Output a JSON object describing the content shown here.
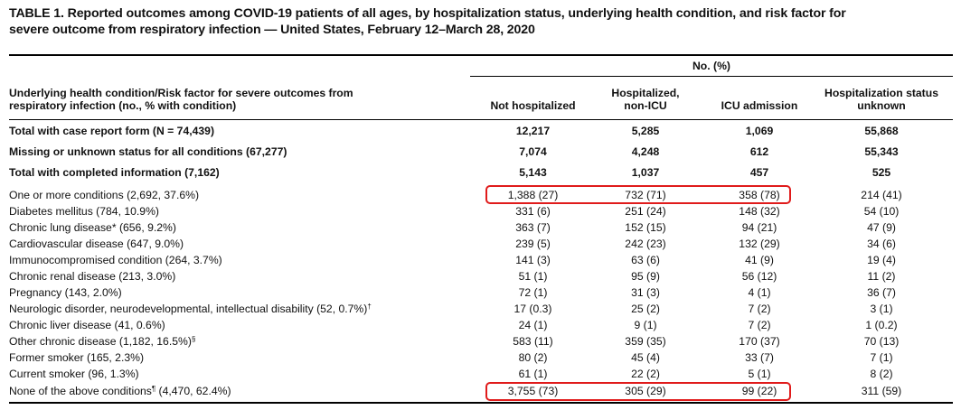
{
  "title_line1": "TABLE 1. Reported outcomes among COVID-19 patients of all ages, by hospitalization status, underlying health condition, and risk factor for",
  "title_line2": "severe outcome from respiratory infection — United States, February 12–March 28, 2020",
  "spanner": "No. (%)",
  "row_header_line1": "Underlying health condition/Risk factor for severe outcomes from",
  "row_header_line2": "respiratory infection (no., % with condition)",
  "columns": [
    {
      "line1": "",
      "line2": "Not hospitalized"
    },
    {
      "line1": "Hospitalized,",
      "line2": "non-ICU"
    },
    {
      "line1": "",
      "line2": "ICU admission"
    },
    {
      "line1": "Hospitalization status",
      "line2": "unknown"
    }
  ],
  "summary_rows": [
    {
      "label": "Total with case report form (N = 74,439)",
      "values": [
        "12,217",
        "5,285",
        "1,069",
        "55,868"
      ]
    },
    {
      "label": "Missing or unknown status for all conditions (67,277)",
      "values": [
        "7,074",
        "4,248",
        "612",
        "55,343"
      ]
    },
    {
      "label": "Total with completed information (7,162)",
      "values": [
        "5,143",
        "1,037",
        "457",
        "525"
      ]
    }
  ],
  "rows": [
    {
      "label": "One or more conditions (2,692, 37.6%)",
      "sup": "",
      "values": [
        "1,388 (27)",
        "732 (71)",
        "358 (78)",
        "214 (41)"
      ]
    },
    {
      "label": "Diabetes mellitus (784, 10.9%)",
      "sup": "",
      "values": [
        "331 (6)",
        "251 (24)",
        "148 (32)",
        "54 (10)"
      ]
    },
    {
      "label": "Chronic lung disease* (656, 9.2%)",
      "sup": "",
      "values": [
        "363 (7)",
        "152 (15)",
        "94 (21)",
        "47 (9)"
      ]
    },
    {
      "label": "Cardiovascular disease (647, 9.0%)",
      "sup": "",
      "values": [
        "239 (5)",
        "242 (23)",
        "132 (29)",
        "34 (6)"
      ]
    },
    {
      "label": "Immunocompromised condition (264, 3.7%)",
      "sup": "",
      "values": [
        "141 (3)",
        "63 (6)",
        "41 (9)",
        "19 (4)"
      ]
    },
    {
      "label": "Chronic renal disease (213, 3.0%)",
      "sup": "",
      "values": [
        "51 (1)",
        "95 (9)",
        "56 (12)",
        "11 (2)"
      ]
    },
    {
      "label": "Pregnancy (143, 2.0%)",
      "sup": "",
      "values": [
        "72 (1)",
        "31 (3)",
        "4 (1)",
        "36 (7)"
      ]
    },
    {
      "label": "Neurologic disorder, neurodevelopmental, intellectual disability (52, 0.7%)",
      "sup": "†",
      "values": [
        "17 (0.3)",
        "25 (2)",
        "7 (2)",
        "3 (1)"
      ]
    },
    {
      "label": "Chronic liver disease (41, 0.6%)",
      "sup": "",
      "values": [
        "24 (1)",
        "9 (1)",
        "7 (2)",
        "1 (0.2)"
      ]
    },
    {
      "label": "Other chronic disease (1,182, 16.5%)",
      "sup": "§",
      "values": [
        "583 (11)",
        "359 (35)",
        "170 (37)",
        "70 (13)"
      ]
    },
    {
      "label": "Former smoker (165, 2.3%)",
      "sup": "",
      "values": [
        "80 (2)",
        "45 (4)",
        "33 (7)",
        "7 (1)"
      ]
    },
    {
      "label": "Current smoker (96, 1.3%)",
      "sup": "",
      "values": [
        "61 (1)",
        "22 (2)",
        "5 (1)",
        "8 (2)"
      ]
    },
    {
      "label_pre": "None of the above conditions",
      "sup": "¶",
      "label_post": " (4,470, 62.4%)",
      "values": [
        "3,755 (73)",
        "305 (29)",
        "99 (22)",
        "311 (59)"
      ]
    }
  ],
  "highlight_color": "#e01b1b"
}
